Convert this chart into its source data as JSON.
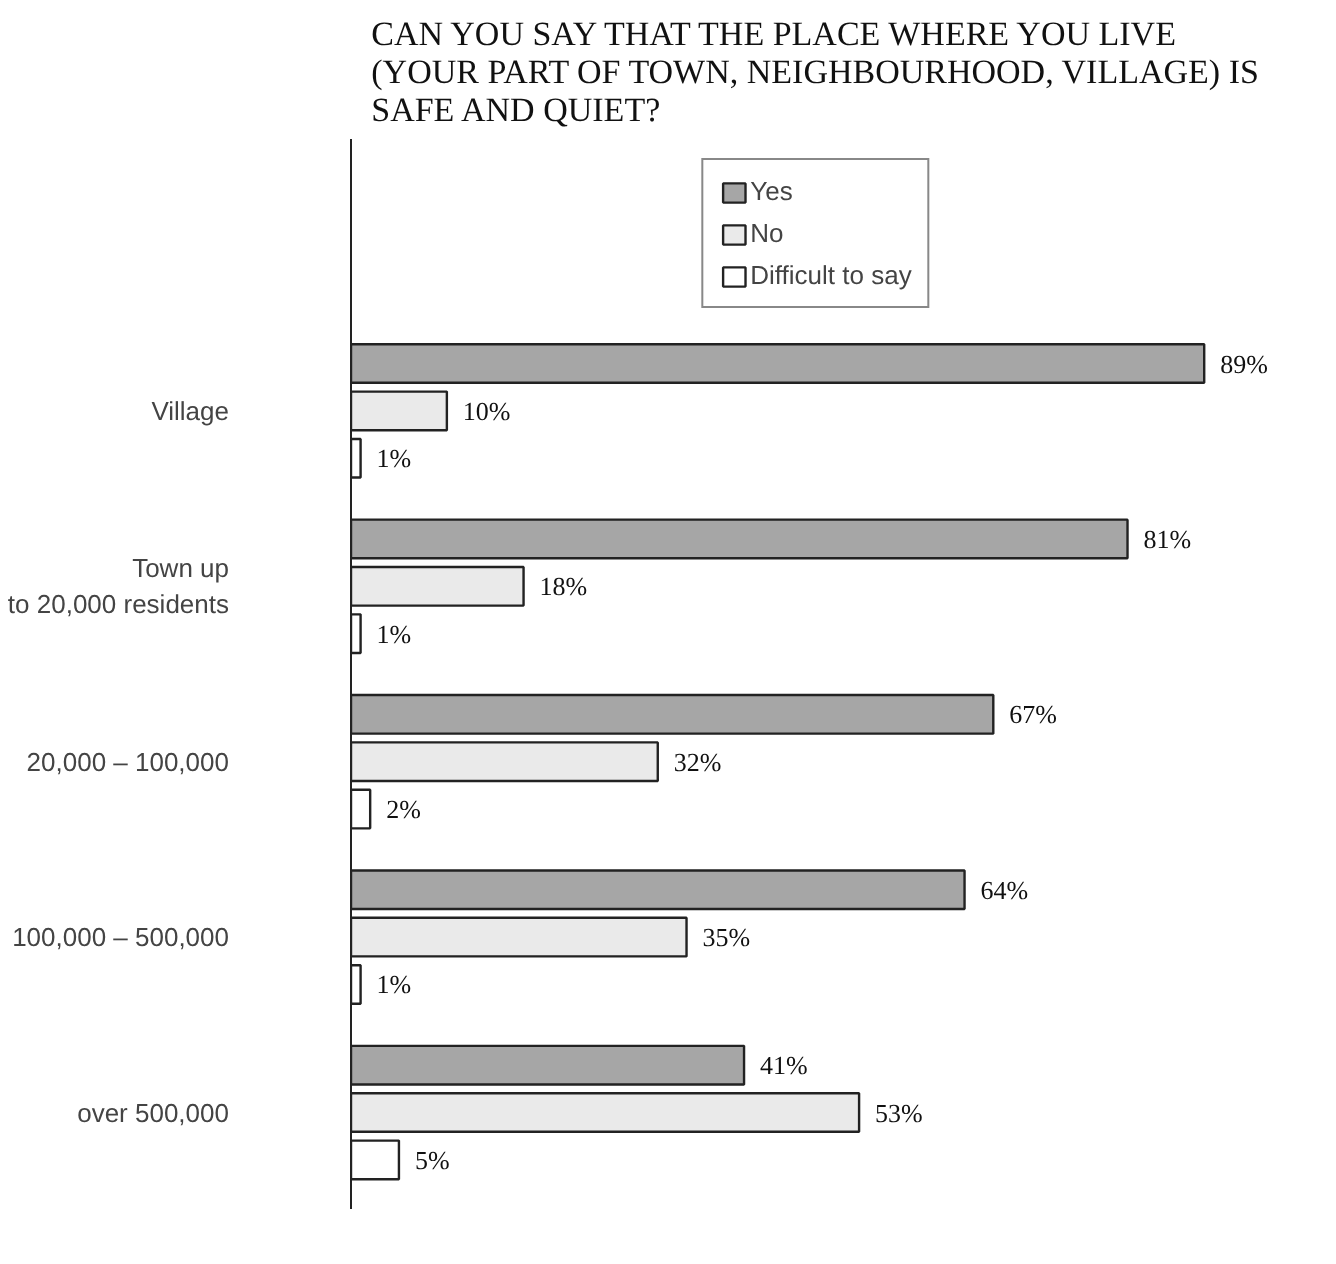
{
  "chart_data": {
    "type": "bar",
    "orientation": "horizontal",
    "title": "CAN YOU SAY THAT THE PLACE WHERE YOU LIVE\n(YOUR PART OF TOWN, NEIGHBOURHOOD, VILLAGE) IS\nSAFE AND QUIET?",
    "categories": [
      "Village",
      "Town up\nto 20,000 residents",
      "20,000 – 100,000",
      "100,000 – 500,000",
      "over 500,000"
    ],
    "series": [
      {
        "name": "Yes",
        "color": "#a6a6a6",
        "values": [
          89,
          81,
          67,
          64,
          41
        ],
        "value_labels": [
          "89%",
          "81%",
          "67%",
          "64%",
          "41%"
        ]
      },
      {
        "name": "No",
        "color": "#eaeaea",
        "values": [
          10,
          18,
          32,
          35,
          53
        ],
        "value_labels": [
          "10%",
          "18%",
          "32%",
          "35%",
          "53%"
        ]
      },
      {
        "name": "Difficult to say",
        "color": "#ffffff",
        "values": [
          1,
          1,
          2,
          1,
          5
        ],
        "value_labels": [
          "1%",
          "1%",
          "2%",
          "1%",
          "5%"
        ]
      }
    ],
    "legend": "top",
    "grid": false
  }
}
